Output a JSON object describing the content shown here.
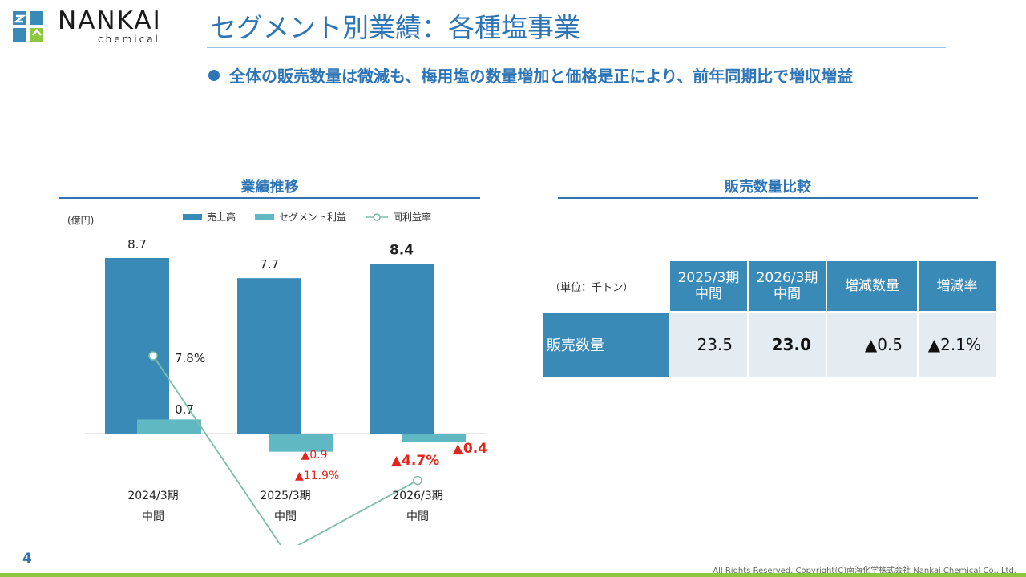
{
  "header": {
    "logo_word": "NANKAI",
    "logo_sub": "chemical",
    "title": "セグメント別業績：各種塩事業",
    "bullet": "全体の販売数量は微減も、梅用塩の数量増加と価格是正により、前年同期比で増収増益"
  },
  "left_section": {
    "title": "業績推移",
    "unit": "(億円)"
  },
  "right_section": {
    "title": "販売数量比較"
  },
  "chart_data": {
    "type": "bar",
    "categories": [
      "2024/3期|中間",
      "2025/3期|中間",
      "2026/3期|中間"
    ],
    "series": [
      {
        "name": "売上高",
        "values": [
          8.7,
          7.7,
          8.4
        ],
        "labels": [
          "8.7",
          "7.7",
          "8.4"
        ],
        "color": "#3a8ab8"
      },
      {
        "name": "セグメント利益",
        "values": [
          0.7,
          -0.9,
          -0.4
        ],
        "labels": [
          "0.7",
          "▲0.9",
          "▲0.4"
        ],
        "color": "#5fb8c2"
      },
      {
        "name": "同利益率",
        "values": [
          7.8,
          -11.9,
          -4.7
        ],
        "labels": [
          "7.8%",
          "▲11.9%",
          "▲4.7%"
        ],
        "color": "#7cbfa7"
      }
    ],
    "bold_index": 2,
    "negative_color": "#e0261e",
    "ylabel": "(億円)"
  },
  "table": {
    "unit": "（単位：千トン）",
    "headers": [
      "2025/3期\n中間",
      "2026/3期\n中間",
      "増減数量",
      "増減率"
    ],
    "headers_line1": [
      "2025/3期",
      "2026/3期",
      "増減数量",
      "増減率"
    ],
    "headers_line2": [
      "中間",
      "中間",
      "",
      ""
    ],
    "row_label": "販売数量",
    "values": [
      "23.5",
      "23.0",
      "▲0.5",
      "▲2.1%"
    ]
  },
  "footer": {
    "page": "4",
    "copyright": "All Rights Reserved. Copyright(C)南海化学株式会社 Nankai Chemical Co., Ltd."
  },
  "colors": {
    "brand_blue": "#2e75b6",
    "bar_blue": "#3a8ab8",
    "teal": "#5fb8c2",
    "green_bar": "#8dc63f"
  }
}
